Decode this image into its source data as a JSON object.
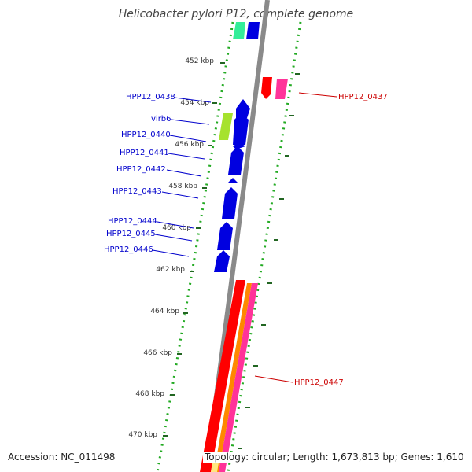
{
  "title": "Helicobacter pylori P12, complete genome",
  "footer": {
    "accession": "Accession: NC_011498",
    "summary": "Topology: circular; Length: 1,673,813 bp; Genes: 1,610"
  },
  "colors": {
    "backbone": "#8a8a8a",
    "forward_gene": "#0000e0",
    "reverse_gene_red": "#ff0000",
    "reverse_gene_pink": "#ff3399",
    "reverse_gene_orange": "#ff8800",
    "green_feature": "#a6e22e",
    "teal_feature": "#33ee99",
    "tick_dots": "#22aa22",
    "label_forward": "#0000cc",
    "label_reverse": "#cc0000"
  },
  "scale_labels": [
    "452 kbp",
    "454 kbp",
    "456 kbp",
    "458 kbp",
    "460 kbp",
    "462 kbp",
    "464 kbp",
    "466 kbp",
    "468 kbp",
    "470 kbp"
  ],
  "gene_labels_left": [
    "HPP12_0438",
    "virb6",
    "HPP12_0440",
    "HPP12_0441",
    "HPP12_0442",
    "HPP12_0443",
    "HPP12_0444",
    "HPP12_0445",
    "HPP12_0446"
  ],
  "gene_labels_right": [
    "HPP12_0437",
    "HPP12_0447"
  ]
}
